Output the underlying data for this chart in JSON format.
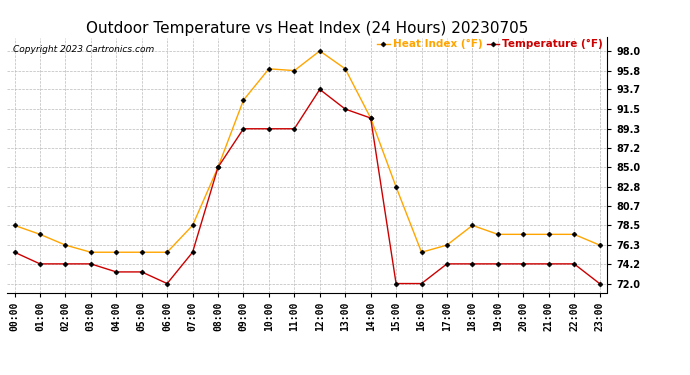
{
  "title": "Outdoor Temperature vs Heat Index (24 Hours) 20230705",
  "copyright": "Copyright 2023 Cartronics.com",
  "legend_heat": "Heat Index (°F)",
  "legend_temp": "Temperature (°F)",
  "hours": [
    "00:00",
    "01:00",
    "02:00",
    "03:00",
    "04:00",
    "05:00",
    "06:00",
    "07:00",
    "08:00",
    "09:00",
    "10:00",
    "11:00",
    "12:00",
    "13:00",
    "14:00",
    "15:00",
    "16:00",
    "17:00",
    "18:00",
    "19:00",
    "20:00",
    "21:00",
    "22:00",
    "23:00"
  ],
  "heat_index": [
    78.5,
    77.5,
    76.3,
    75.5,
    75.5,
    75.5,
    75.5,
    78.5,
    85.0,
    92.5,
    96.0,
    95.8,
    98.0,
    96.0,
    90.5,
    82.8,
    75.5,
    76.3,
    78.5,
    77.5,
    77.5,
    77.5,
    77.5,
    76.3
  ],
  "temperature": [
    75.5,
    74.2,
    74.2,
    74.2,
    73.3,
    73.3,
    72.0,
    75.5,
    85.0,
    89.3,
    89.3,
    89.3,
    93.7,
    91.5,
    90.5,
    72.0,
    72.0,
    74.2,
    74.2,
    74.2,
    74.2,
    74.2,
    74.2,
    72.0
  ],
  "heat_color": "#FFA500",
  "temp_color": "#CC0000",
  "marker_color": "black",
  "bg_color": "#ffffff",
  "grid_color": "#bbbbbb",
  "yticks": [
    72.0,
    74.2,
    76.3,
    78.5,
    80.7,
    82.8,
    85.0,
    87.2,
    89.3,
    91.5,
    93.7,
    95.8,
    98.0
  ],
  "ylim": [
    71.0,
    99.5
  ],
  "title_fontsize": 11,
  "tick_fontsize": 7,
  "legend_fontsize": 7.5
}
